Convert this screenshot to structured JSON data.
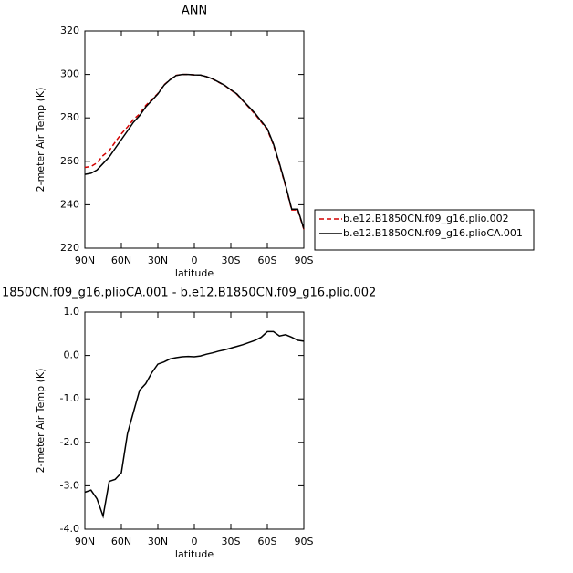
{
  "chart_data": [
    {
      "type": "line",
      "title": "ANN",
      "x_label": "latitude",
      "y_label": "2-meter Air Temp (K)",
      "x": [
        90,
        85,
        80,
        75,
        70,
        65,
        60,
        55,
        50,
        45,
        40,
        35,
        30,
        25,
        20,
        15,
        10,
        5,
        0,
        -5,
        -10,
        -15,
        -20,
        -25,
        -30,
        -35,
        -40,
        -45,
        -50,
        -55,
        -60,
        -65,
        -70,
        -75,
        -80,
        -85,
        -90
      ],
      "series": [
        {
          "name": "b.e12.B1850CN.f09_g16.plio.002",
          "color": "#d40000",
          "linestyle": "dashed",
          "values": [
            257.2,
            257.6,
            259.3,
            262.7,
            264.9,
            268.9,
            272.7,
            275.8,
            279.3,
            281.8,
            285.7,
            288.4,
            291.2,
            295.2,
            297.6,
            299.6,
            300,
            300,
            299.8,
            299.7,
            299,
            297.9,
            296.4,
            294.9,
            292.8,
            290.8,
            287.8,
            284.7,
            281.6,
            278.1,
            274.5,
            267.5,
            258.6,
            248.5,
            237.6,
            237.6,
            228.7
          ]
        },
        {
          "name": "b.e12.B1850CN.f09_g16.plioCA.001",
          "color": "#000000",
          "linestyle": "solid",
          "values": [
            254,
            254.5,
            256,
            259,
            262,
            266,
            270,
            274,
            278,
            281,
            285,
            288,
            291,
            295,
            297.5,
            299.5,
            300,
            300,
            299.8,
            299.7,
            299,
            298,
            296.5,
            295,
            293,
            291,
            288,
            285,
            282,
            278.5,
            275,
            268,
            259,
            249,
            238,
            238,
            229
          ]
        }
      ],
      "xlim": [
        90,
        -90
      ],
      "xticks": [
        {
          "value": 90,
          "label": "90N"
        },
        {
          "value": 60,
          "label": "60N"
        },
        {
          "value": 30,
          "label": "30N"
        },
        0,
        {
          "value": -30,
          "label": "30S"
        },
        {
          "value": -60,
          "label": "60S"
        },
        {
          "value": -90,
          "label": "90S"
        }
      ],
      "ylim": [
        220,
        320
      ],
      "yticks": [
        220,
        240,
        260,
        280,
        300,
        320
      ],
      "legend": "right"
    },
    {
      "type": "line",
      "title": "1850CN.f09_g16.plioCA.001 - b.e12.B1850CN.f09_g16.plio.002",
      "x_label": "latitude",
      "y_label": "2-meter Air Temp (K)",
      "x": [
        90,
        85,
        80,
        75,
        70,
        65,
        60,
        55,
        50,
        45,
        40,
        35,
        30,
        25,
        20,
        15,
        10,
        5,
        0,
        -5,
        -10,
        -15,
        -20,
        -25,
        -30,
        -35,
        -40,
        -45,
        -50,
        -55,
        -60,
        -65,
        -70,
        -75,
        -80,
        -85,
        -90
      ],
      "series": [
        {
          "color": "#000000",
          "linestyle": "solid",
          "values": [
            -3.15,
            -3.1,
            -3.3,
            -3.7,
            -2.9,
            -2.85,
            -2.7,
            -1.8,
            -1.3,
            -0.8,
            -0.65,
            -0.4,
            -0.2,
            -0.15,
            -0.08,
            -0.05,
            -0.03,
            -0.02,
            -0.03,
            -0.01,
            0.03,
            0.06,
            0.1,
            0.13,
            0.17,
            0.21,
            0.25,
            0.3,
            0.35,
            0.42,
            0.55,
            0.55,
            0.45,
            0.48,
            0.42,
            0.35,
            0.33
          ]
        }
      ],
      "xlim": [
        90,
        -90
      ],
      "xticks": [
        {
          "value": 90,
          "label": "90N"
        },
        {
          "value": 60,
          "label": "60N"
        },
        {
          "value": 30,
          "label": "30N"
        },
        0,
        {
          "value": -30,
          "label": "30S"
        },
        {
          "value": -60,
          "label": "60S"
        },
        {
          "value": -90,
          "label": "90S"
        }
      ],
      "ylim": [
        -4,
        1
      ],
      "yticks": [
        {
          "value": -4,
          "label": "-4.0"
        },
        {
          "value": -3,
          "label": "-3.0"
        },
        {
          "value": -2,
          "label": "-2.0"
        },
        {
          "value": -1,
          "label": "-1.0"
        },
        {
          "value": 0,
          "label": "0.0"
        },
        {
          "value": 1,
          "label": "1.0"
        }
      ]
    }
  ]
}
